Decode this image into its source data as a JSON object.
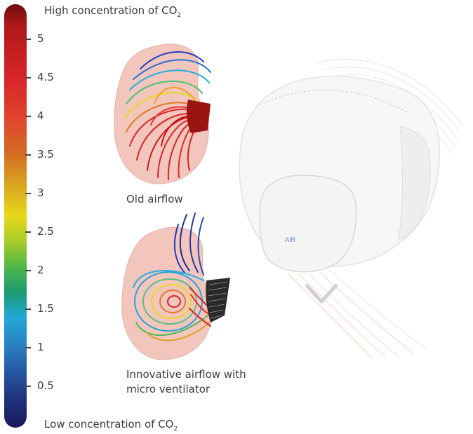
{
  "colorbar": {
    "top_label": "High concentration of CO",
    "top_sub": "2",
    "bottom_label": "Low concentration of CO",
    "bottom_sub": "2",
    "ticks": [
      {
        "label": "5"
      },
      {
        "label": "4.5"
      },
      {
        "label": "4"
      },
      {
        "label": "3.5"
      },
      {
        "label": "3"
      },
      {
        "label": "2.5"
      },
      {
        "label": "2"
      },
      {
        "label": "1.5"
      },
      {
        "label": "1"
      },
      {
        "label": "0.5"
      }
    ]
  },
  "panels": {
    "old": {
      "caption": "Old airflow"
    },
    "new": {
      "caption_line1": "Innovative airflow with",
      "caption_line2": "micro ventilator"
    }
  },
  "mask": {
    "logo_text": "AIR"
  }
}
